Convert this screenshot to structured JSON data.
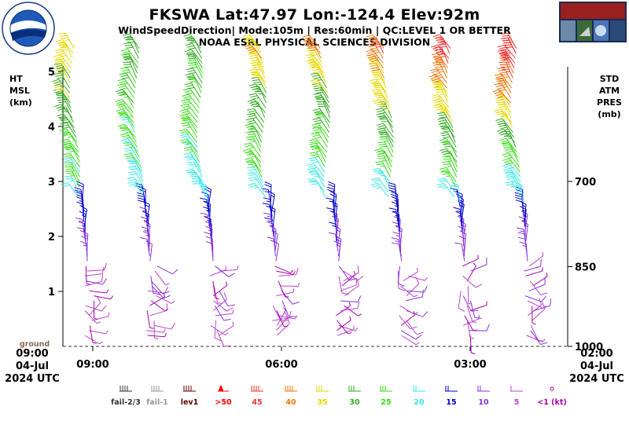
{
  "header": {
    "title": "FKSWA  Lat:47.97 Lon:-124.4 Elev:92m",
    "subtitle": "WindSpeedDirection| Mode:105m | Res:60min |  QC:LEVEL 1 OR BETTER",
    "org": "NOAA ESRL PHYSICAL SCIENCES DIVISION"
  },
  "colors": {
    "fail23": "#333333",
    "fail1": "#999999",
    "lev1": "#660000",
    "s50": "#ff0000",
    "s45": "#ee3333",
    "s40": "#ee7711",
    "s35": "#e8d800",
    "s30": "#33aa22",
    "s25": "#33dd11",
    "s20": "#33e8e8",
    "s15": "#0000cc",
    "s10": "#8833dd",
    "s5": "#bb44cc",
    "s1": "#aa00aa"
  },
  "chart_data": {
    "type": "wind-barb time-height",
    "left_axis": {
      "label": [
        "HT",
        "MSL",
        "(km)"
      ],
      "ticks": [
        1,
        2,
        3,
        4,
        5
      ],
      "range": [
        0,
        5.5
      ],
      "ground_label": "ground"
    },
    "right_axis": {
      "label": [
        "STD",
        "ATM",
        "PRES",
        "(mb)"
      ],
      "ticks": [
        {
          "label": "700",
          "km": 3.0
        },
        {
          "label": "850",
          "km": 1.45
        },
        {
          "label": "1000",
          "km": 0.0
        }
      ]
    },
    "x_axis": {
      "start": [
        "09:00",
        "04-Jul",
        "2024 UTC"
      ],
      "end": [
        "02:00",
        "04-Jul",
        "2024 UTC"
      ],
      "ticks": [
        "09:00",
        "06:00",
        "03:00"
      ],
      "tick_profile_index": [
        0,
        3,
        6
      ],
      "profile_count": 8
    },
    "legend": [
      {
        "label": "fail-2/3",
        "color_key": "fail23"
      },
      {
        "label": "fail-1",
        "color_key": "fail1"
      },
      {
        "label": "lev1",
        "color_key": "lev1"
      },
      {
        "label": ">50",
        "color_key": "s50"
      },
      {
        "label": "45",
        "color_key": "s45"
      },
      {
        "label": "40",
        "color_key": "s40"
      },
      {
        "label": "35",
        "color_key": "s35"
      },
      {
        "label": "30",
        "color_key": "s30"
      },
      {
        "label": "25",
        "color_key": "s25"
      },
      {
        "label": "20",
        "color_key": "s20"
      },
      {
        "label": "15",
        "color_key": "s15"
      },
      {
        "label": "10",
        "color_key": "s10"
      },
      {
        "label": "5",
        "color_key": "s5"
      },
      {
        "label": "<1  (kt)",
        "color_key": "s1"
      }
    ],
    "profiles": [
      {
        "max_speed": 37
      },
      {
        "max_speed": 30
      },
      {
        "max_speed": 30
      },
      {
        "max_speed": 37
      },
      {
        "max_speed": 37
      },
      {
        "max_speed": 42
      },
      {
        "max_speed": 45
      },
      {
        "max_speed": 47
      }
    ]
  }
}
